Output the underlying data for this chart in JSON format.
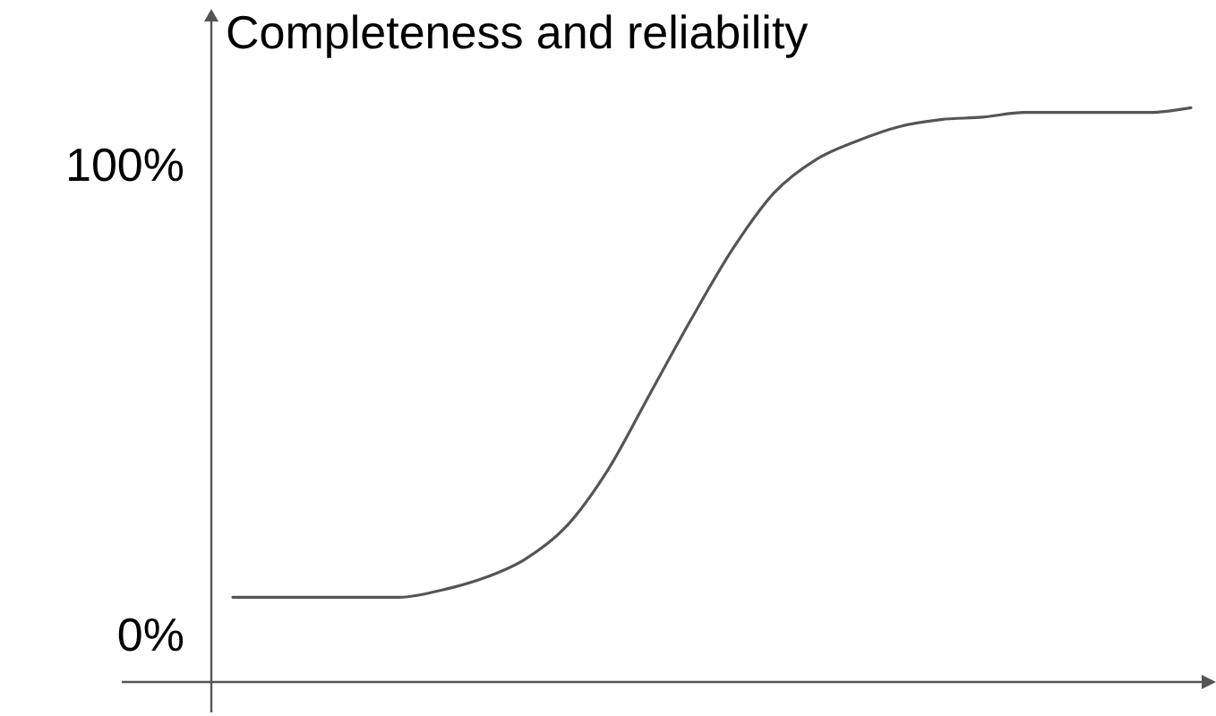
{
  "chart_data": {
    "type": "line",
    "title": "Completeness and reliability",
    "categories": [
      null,
      null,
      null,
      null,
      null,
      null,
      null,
      null,
      null,
      null,
      null,
      null,
      null,
      null,
      null,
      null,
      null,
      null,
      null,
      null,
      null,
      null,
      null,
      null
    ],
    "series": [
      {
        "color": "#555555",
        "values": [
          8,
          8,
          8,
          8,
          8,
          9.5,
          12,
          16,
          23,
          35,
          51,
          67,
          82,
          94,
          101,
          105,
          108,
          109.5,
          110,
          111,
          111,
          111,
          111,
          112
        ]
      }
    ],
    "ylim": [
      -10,
      133
    ],
    "yticks": [
      {
        "value": 0,
        "label": "0%"
      },
      {
        "value": 100,
        "label": "100%"
      }
    ]
  }
}
